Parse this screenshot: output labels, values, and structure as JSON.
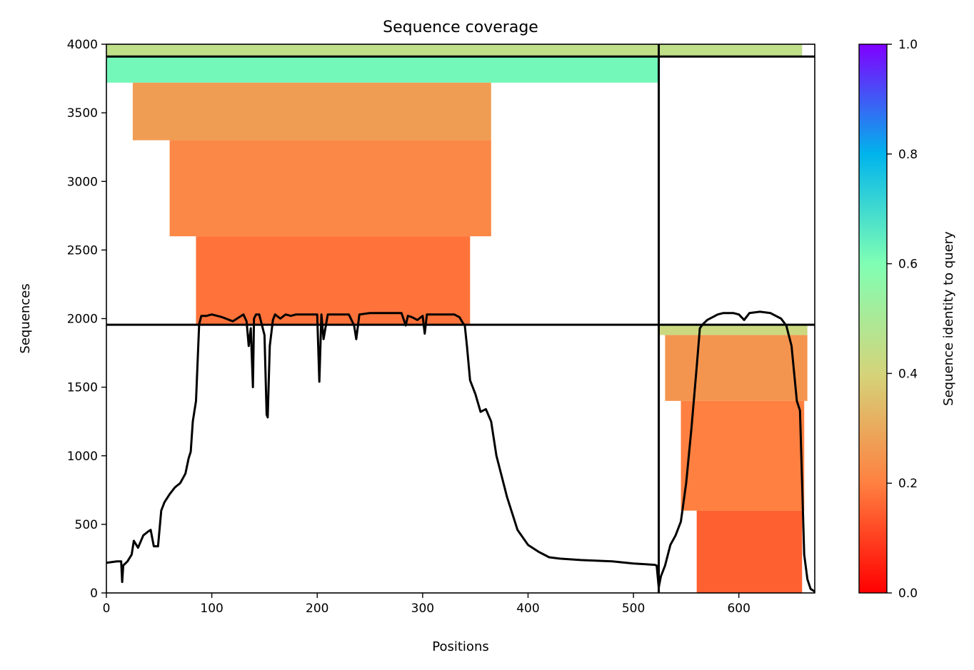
{
  "chart_data": {
    "type": "heatmap",
    "title": "Sequence coverage",
    "xlabel": "Positions",
    "ylabel": "Sequences",
    "xlim": [
      0,
      672
    ],
    "ylim": [
      0,
      4000
    ],
    "x_ticks": [
      0,
      100,
      200,
      300,
      400,
      500,
      600
    ],
    "y_ticks": [
      0,
      500,
      1000,
      1500,
      2000,
      2500,
      3000,
      3500,
      4000
    ],
    "colorbar": {
      "label": "Sequence identity to query",
      "colormap": "rainbow_r",
      "range": [
        0,
        1
      ],
      "ticks": [
        "0.0",
        "0.2",
        "0.4",
        "0.6",
        "0.8",
        "1.0"
      ],
      "stops": [
        "#ff0000",
        "#ff8040",
        "#d4d47a",
        "#80ffb4",
        "#00b4ec",
        "#8000ff"
      ]
    },
    "chain_boundaries": {
      "position": 524,
      "sequences": [
        1955,
        3910
      ]
    },
    "coverage_blocks": [
      {
        "x_start": 0,
        "x_end": 524,
        "y_start": 3910,
        "y_end": 4000,
        "identity": 0.45
      },
      {
        "x_start": 0,
        "x_end": 524,
        "y_start": 3720,
        "y_end": 3910,
        "identity": 0.62
      },
      {
        "x_start": 25,
        "x_end": 365,
        "y_start": 3300,
        "y_end": 3720,
        "identity": 0.27
      },
      {
        "x_start": 60,
        "x_end": 365,
        "y_start": 2600,
        "y_end": 3300,
        "identity": 0.22
      },
      {
        "x_start": 85,
        "x_end": 345,
        "y_start": 1955,
        "y_end": 2600,
        "identity": 0.18
      },
      {
        "x_start": 524,
        "x_end": 660,
        "y_start": 3910,
        "y_end": 4000,
        "identity": 0.45
      },
      {
        "x_start": 524,
        "x_end": 665,
        "y_start": 1880,
        "y_end": 1955,
        "identity": 0.42
      },
      {
        "x_start": 530,
        "x_end": 665,
        "y_start": 1400,
        "y_end": 1880,
        "identity": 0.25
      },
      {
        "x_start": 545,
        "x_end": 662,
        "y_start": 600,
        "y_end": 1400,
        "identity": 0.2
      },
      {
        "x_start": 560,
        "x_end": 660,
        "y_start": 0,
        "y_end": 600,
        "identity": 0.15
      }
    ],
    "coverage_line": {
      "x": [
        0,
        10,
        14,
        15,
        16,
        20,
        24,
        26,
        30,
        35,
        40,
        42,
        45,
        49,
        52,
        55,
        60,
        65,
        70,
        75,
        78,
        80,
        82,
        85,
        88,
        90,
        95,
        100,
        110,
        120,
        130,
        133,
        135,
        137,
        139,
        140,
        142,
        145,
        150,
        152,
        153,
        155,
        158,
        160,
        165,
        170,
        175,
        180,
        190,
        200,
        202,
        204,
        206,
        210,
        220,
        230,
        235,
        237,
        240,
        250,
        260,
        270,
        280,
        284,
        286,
        290,
        295,
        300,
        302,
        304,
        306,
        310,
        320,
        330,
        335,
        338,
        340,
        342,
        345,
        350,
        355,
        360,
        365,
        370,
        380,
        390,
        400,
        410,
        420,
        430,
        450,
        480,
        500,
        510,
        520,
        522,
        524,
        526,
        530,
        535,
        540,
        545,
        550,
        555,
        560,
        563,
        566,
        570,
        575,
        580,
        585,
        590,
        595,
        600,
        605,
        610,
        620,
        630,
        640,
        645,
        650,
        655,
        658,
        660,
        662,
        665,
        668,
        672
      ],
      "y": [
        220,
        230,
        230,
        80,
        200,
        230,
        280,
        380,
        330,
        420,
        450,
        460,
        340,
        340,
        600,
        660,
        720,
        770,
        800,
        870,
        980,
        1030,
        1250,
        1400,
        1960,
        2020,
        2020,
        2030,
        2010,
        1980,
        2030,
        1980,
        1800,
        1930,
        1500,
        2000,
        2030,
        2030,
        1880,
        1300,
        1280,
        1800,
        1990,
        2030,
        2000,
        2030,
        2020,
        2030,
        2030,
        2030,
        1540,
        2030,
        1850,
        2030,
        2030,
        2030,
        1950,
        1850,
        2030,
        2040,
        2040,
        2040,
        2040,
        1950,
        2020,
        2010,
        1990,
        2020,
        1890,
        2030,
        2030,
        2030,
        2030,
        2030,
        2010,
        1970,
        1950,
        1800,
        1550,
        1450,
        1320,
        1340,
        1250,
        1000,
        700,
        460,
        350,
        300,
        260,
        250,
        240,
        230,
        215,
        210,
        205,
        200,
        40,
        120,
        200,
        350,
        420,
        520,
        800,
        1200,
        1650,
        1930,
        1960,
        1990,
        2010,
        2030,
        2040,
        2040,
        2040,
        2030,
        1990,
        2040,
        2050,
        2040,
        2000,
        1950,
        1800,
        1400,
        1330,
        800,
        280,
        100,
        30,
        10
      ]
    }
  }
}
